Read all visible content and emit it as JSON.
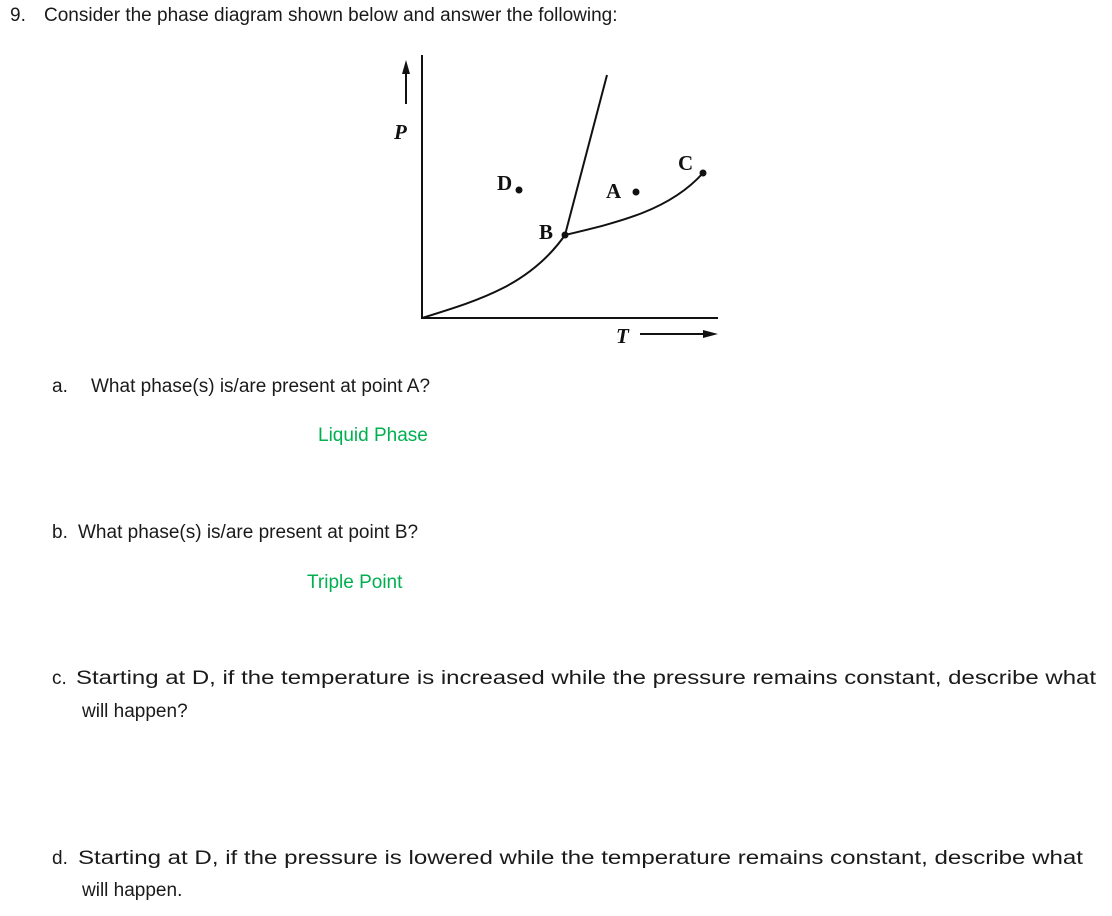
{
  "question": {
    "number": "9.",
    "text": "Consider the phase diagram shown below and answer the following:"
  },
  "diagram": {
    "y_axis_label": "P",
    "x_axis_label": "T",
    "points": [
      "A",
      "B",
      "C",
      "D"
    ]
  },
  "parts": [
    {
      "label": "a.",
      "lines": [
        "What phase(s) is/are present at point A?"
      ],
      "answer": "Liquid Phase"
    },
    {
      "label": "b.",
      "lines": [
        "What phase(s) is/are present at point B?"
      ],
      "answer": "Triple Point"
    },
    {
      "label": "c.",
      "lines": [
        "Starting at D, if the temperature is increased while the pressure remains constant, describe what",
        "will happen?"
      ]
    },
    {
      "label": "d.",
      "lines": [
        "Starting at D, if the pressure is lowered while the temperature remains constant, describe what",
        "will happen."
      ]
    }
  ]
}
